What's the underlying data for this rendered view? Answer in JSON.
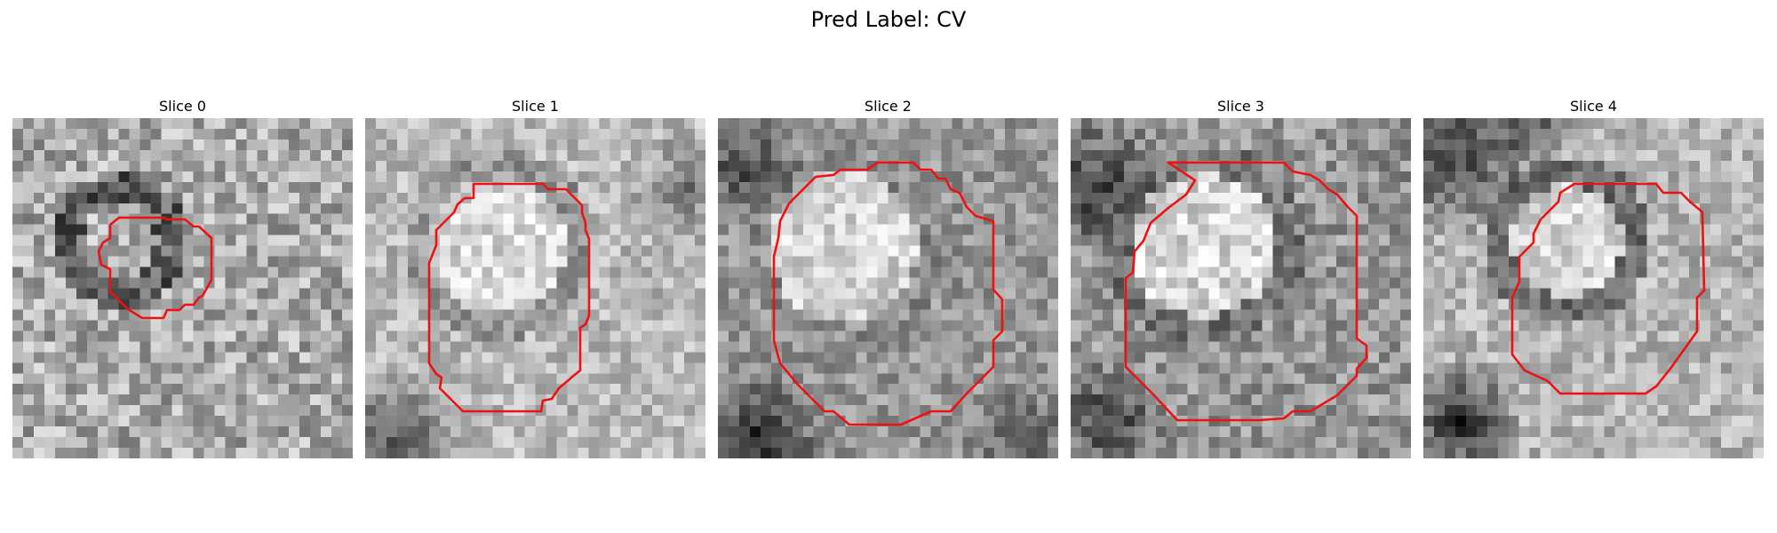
{
  "figure": {
    "title": "Pred Label: CV"
  },
  "panels": [
    {
      "title": "Slice 0",
      "contour_color": "#ee1111"
    },
    {
      "title": "Slice 1",
      "contour_color": "#ee1111"
    },
    {
      "title": "Slice 2",
      "contour_color": "#ee1111"
    },
    {
      "title": "Slice 3",
      "contour_color": "#ee1111"
    },
    {
      "title": "Slice 4",
      "contour_color": "#ee1111"
    }
  ]
}
